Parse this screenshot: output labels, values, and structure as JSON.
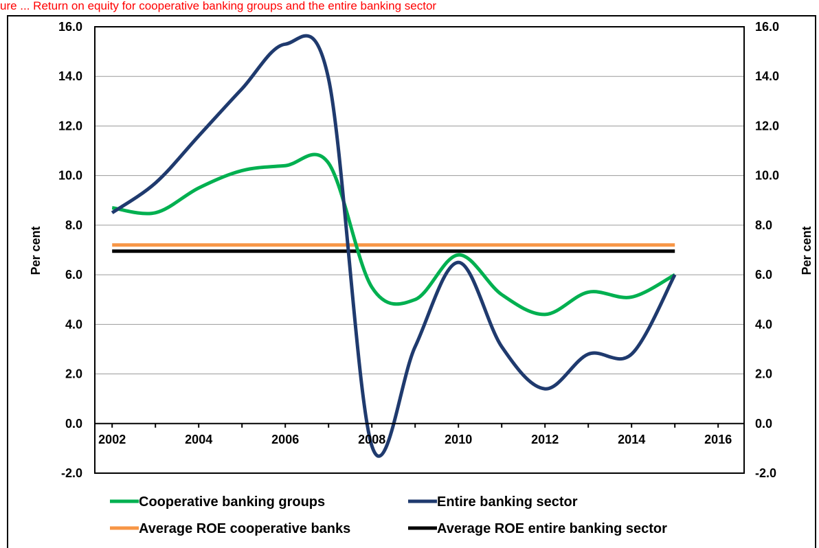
{
  "figure_title": "ure ... Return on equity for cooperative banking groups and the entire banking sector",
  "chart_data": {
    "type": "line",
    "title": "",
    "xlabel": "",
    "ylabel_left": "Per cent",
    "ylabel_right": "Per cent",
    "ylim": [
      -2.0,
      16.0
    ],
    "yticks": [
      "-2.0",
      "0.0",
      "2.0",
      "4.0",
      "6.0",
      "8.0",
      "10.0",
      "12.0",
      "14.0",
      "16.0"
    ],
    "xlim": [
      2002,
      2016
    ],
    "xticks": [
      "2002",
      "2004",
      "2006",
      "2008",
      "2010",
      "2012",
      "2014",
      "2016"
    ],
    "grid": true,
    "legend_position": "bottom",
    "series": [
      {
        "name": "Cooperative banking groups",
        "color": "#00b050",
        "x": [
          2002,
          2003,
          2004,
          2005,
          2006,
          2007,
          2008,
          2009,
          2010,
          2011,
          2012,
          2013,
          2014,
          2015
        ],
        "values": [
          8.7,
          8.5,
          9.5,
          10.2,
          10.4,
          10.5,
          5.5,
          5.0,
          6.8,
          5.2,
          4.4,
          5.3,
          5.1,
          6.0
        ]
      },
      {
        "name": "Entire banking sector",
        "color": "#1f3a6e",
        "x": [
          2002,
          2003,
          2004,
          2005,
          2006,
          2007,
          2008,
          2009,
          2010,
          2011,
          2012,
          2013,
          2014,
          2015
        ],
        "values": [
          8.5,
          9.7,
          11.6,
          13.5,
          15.3,
          13.9,
          -0.9,
          3.1,
          6.5,
          3.1,
          1.4,
          2.8,
          2.8,
          6.0
        ]
      },
      {
        "name": "Average ROE cooperative banks",
        "color": "#f79646",
        "x": [
          2002,
          2015
        ],
        "values": [
          7.2,
          7.2
        ]
      },
      {
        "name": "Average ROE entire banking sector",
        "color": "#000000",
        "x": [
          2002,
          2015
        ],
        "values": [
          6.95,
          6.95
        ]
      }
    ]
  }
}
